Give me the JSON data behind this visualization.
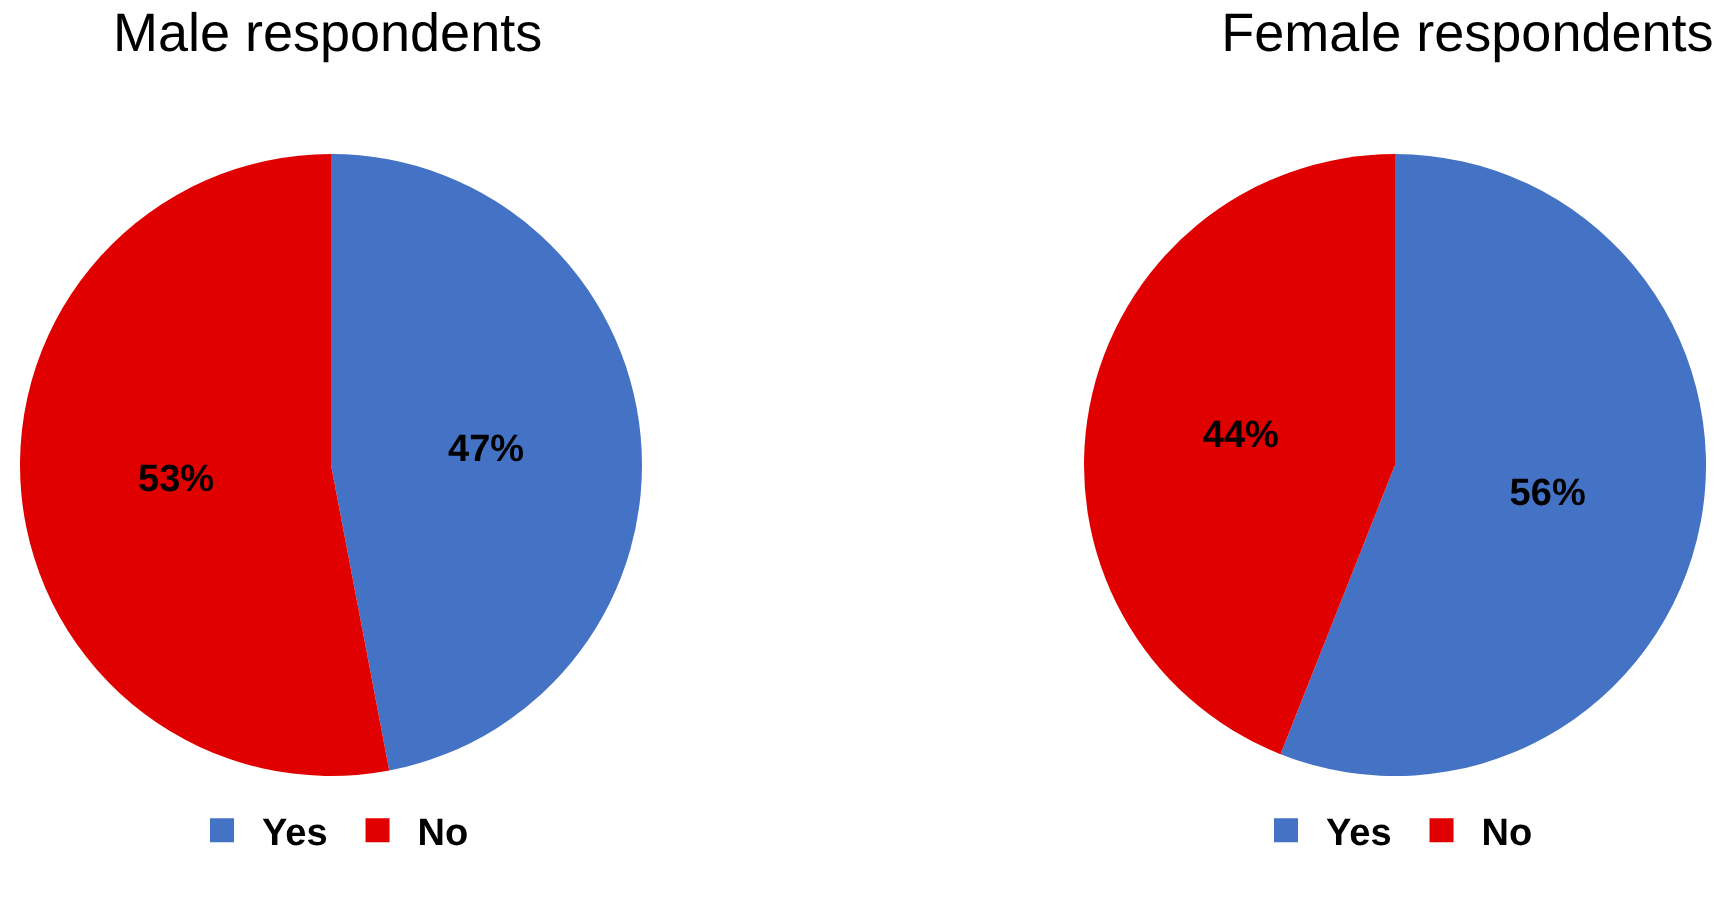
{
  "chart_data": [
    {
      "type": "pie",
      "title": "Male respondents",
      "categories": [
        "Yes",
        "No"
      ],
      "values": [
        47,
        53
      ],
      "value_labels": [
        "47%",
        "53%"
      ],
      "colors": [
        "#4472c4",
        "#e00000"
      ],
      "legend": "bottom"
    },
    {
      "type": "pie",
      "title": "Female respondents",
      "categories": [
        "Yes",
        "No"
      ],
      "values": [
        56,
        44
      ],
      "value_labels": [
        "56%",
        "44%"
      ],
      "colors": [
        "#4472c4",
        "#e00000"
      ],
      "legend": "bottom"
    }
  ]
}
